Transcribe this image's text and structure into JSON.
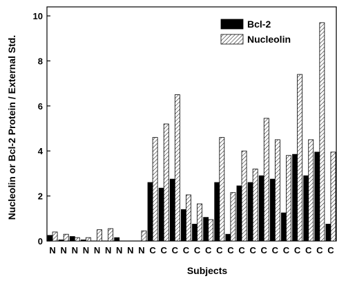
{
  "chart_data": {
    "type": "bar",
    "x_label": "Subjects",
    "y_label": "Nucleolin or Bcl-2 Protein / External Std.",
    "categories": [
      "N",
      "N",
      "N",
      "N",
      "N",
      "N",
      "N",
      "N",
      "N",
      "C",
      "C",
      "C",
      "C",
      "C",
      "C",
      "C",
      "C",
      "C",
      "C",
      "C",
      "C",
      "C",
      "C",
      "C",
      "C",
      "C"
    ],
    "series": [
      {
        "name": "Bcl-2",
        "color": "#000000",
        "values": [
          0.25,
          0.05,
          0.2,
          0.05,
          0,
          0,
          0.15,
          0,
          0,
          2.6,
          2.35,
          2.75,
          1.4,
          0.75,
          1.05,
          2.6,
          0.3,
          2.45,
          2.6,
          2.9,
          2.75,
          1.25,
          3.85,
          2.9,
          3.95,
          0.75
        ]
      },
      {
        "name": "Nucleolin",
        "color": "hatched",
        "values": [
          0.4,
          0.3,
          0.15,
          0.15,
          0.5,
          0.55,
          0,
          0,
          0.45,
          4.6,
          5.2,
          6.5,
          2.05,
          1.65,
          0.95,
          4.6,
          2.15,
          4.0,
          3.2,
          5.45,
          4.5,
          3.8,
          7.4,
          4.5,
          9.7,
          3.95
        ]
      }
    ],
    "ylim": [
      0,
      10.4
    ],
    "yticks": [
      0,
      2,
      4,
      6,
      8,
      10
    ],
    "legend": "upper right"
  }
}
